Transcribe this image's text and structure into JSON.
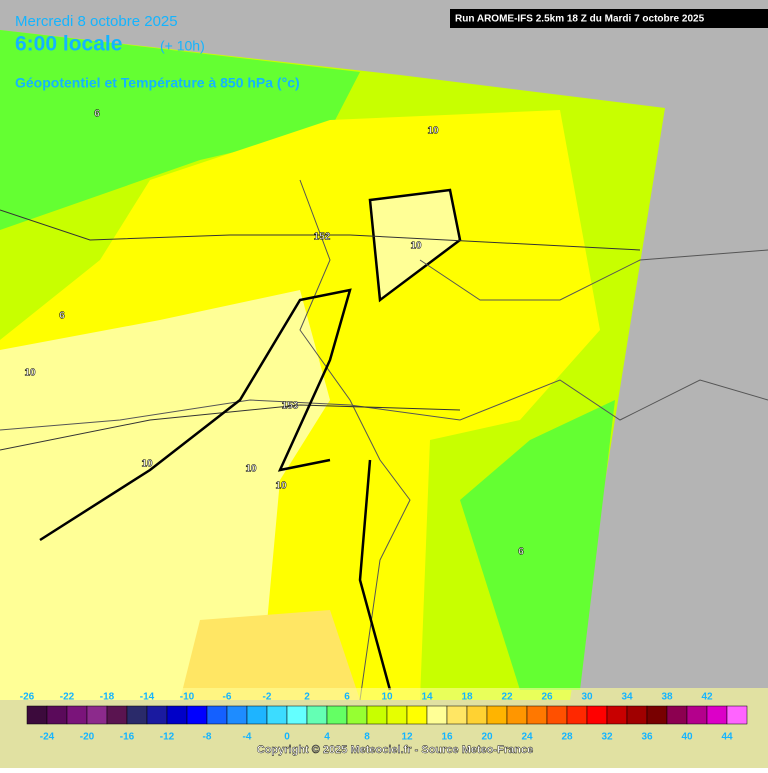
{
  "header": {
    "date": "Mercredi 8 octobre 2025",
    "time": "6:00 locale",
    "lead": "(+ 10h)",
    "parameter": "Géopotentiel et Température à 850 hPa (°c)",
    "run": "Run AROME-IFS 2.5km 18 Z du Mardi 7 octobre 2025"
  },
  "contour_labels": [
    "6",
    "6",
    "10",
    "10",
    "10",
    "10",
    "10",
    "10",
    "152",
    "153",
    "6"
  ],
  "legend": {
    "values": [
      -26,
      -24,
      -22,
      -20,
      -18,
      -16,
      -14,
      -12,
      -10,
      -8,
      -6,
      -4,
      -2,
      0,
      2,
      4,
      6,
      8,
      10,
      12,
      14,
      16,
      18,
      20,
      22,
      24,
      26,
      28,
      30,
      32,
      34,
      36,
      38,
      40,
      42,
      44
    ],
    "colors": [
      "#3c0a3c",
      "#5a0a5a",
      "#7a147a",
      "#8c2a8c",
      "#5a1450",
      "#2a2a6a",
      "#1a1aa0",
      "#0000c8",
      "#0000ff",
      "#1460ff",
      "#1e8cff",
      "#1eb4ff",
      "#3cdcff",
      "#64ffff",
      "#64ffb4",
      "#64ff64",
      "#96ff32",
      "#c8ff00",
      "#e6ff00",
      "#ffff00",
      "#ffff96",
      "#ffe664",
      "#ffd232",
      "#ffb400",
      "#ff9600",
      "#ff7800",
      "#ff5000",
      "#ff2800",
      "#ff0000",
      "#c80000",
      "#a00000",
      "#780000",
      "#8c0050",
      "#b4008c",
      "#dc00c8",
      "#ff64ff"
    ]
  },
  "copyright": "Copyright © 2025 Meteociel.fr - Source Meteo-France"
}
